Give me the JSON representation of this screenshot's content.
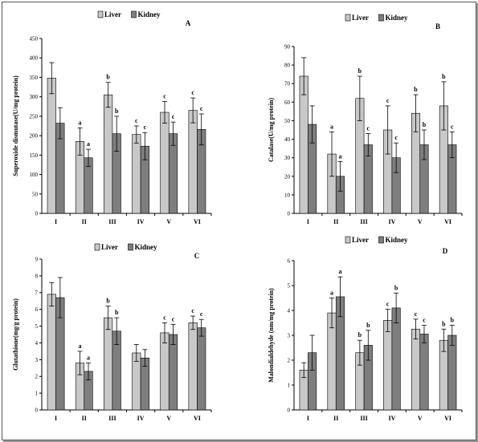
{
  "colors": {
    "liver": "#c8c8c8",
    "kidney": "#7e7e7e",
    "axis": "#000000"
  },
  "chart_data": [
    {
      "type": "bar",
      "panel": "A",
      "ylabel": "Superoxide dismutase(U/mg protein)",
      "ylim": [
        0,
        450
      ],
      "yticks": [
        0,
        50,
        100,
        150,
        200,
        250,
        300,
        350,
        400,
        450
      ],
      "categories": [
        "I",
        "II",
        "III",
        "IV",
        "V",
        "VI"
      ],
      "series": [
        {
          "name": "Liver",
          "values": [
            348,
            185,
            305,
            203,
            260,
            265
          ],
          "err": [
            40,
            35,
            32,
            22,
            28,
            32
          ],
          "sig": [
            "",
            "a",
            "b",
            "c",
            "c",
            "c"
          ]
        },
        {
          "name": "Kidney",
          "values": [
            232,
            143,
            205,
            173,
            205,
            216
          ],
          "err": [
            40,
            22,
            45,
            35,
            30,
            40
          ],
          "sig": [
            "",
            "a",
            "b",
            "c",
            "c",
            "c"
          ]
        }
      ]
    },
    {
      "type": "bar",
      "panel": "B",
      "ylabel": "Catalase(U/mg protein)",
      "ylim": [
        0,
        90
      ],
      "yticks": [
        0,
        10,
        20,
        30,
        40,
        50,
        60,
        70,
        80,
        90
      ],
      "categories": [
        "I",
        "II",
        "III",
        "IV",
        "V",
        "VI"
      ],
      "series": [
        {
          "name": "Liver",
          "values": [
            74,
            32,
            62,
            45,
            54,
            58
          ],
          "err": [
            10,
            12,
            12,
            13,
            10,
            13
          ],
          "sig": [
            "",
            "a",
            "b",
            "c",
            "b",
            "b"
          ]
        },
        {
          "name": "Kidney",
          "values": [
            48,
            20,
            37,
            30,
            37,
            37
          ],
          "err": [
            10,
            8,
            6,
            8,
            8,
            7
          ],
          "sig": [
            "",
            "a",
            "c",
            "c",
            "b",
            "c"
          ]
        }
      ]
    },
    {
      "type": "bar",
      "panel": "C",
      "ylabel": "Glutathione(mg/g protein)",
      "ylim": [
        0,
        9
      ],
      "yticks": [
        0,
        1,
        2,
        3,
        4,
        5,
        6,
        7,
        8,
        9
      ],
      "categories": [
        "I",
        "II",
        "III",
        "IV",
        "V",
        "VI"
      ],
      "series": [
        {
          "name": "Liver",
          "values": [
            6.9,
            2.8,
            5.5,
            3.4,
            4.6,
            5.2
          ],
          "err": [
            0.7,
            0.7,
            0.7,
            0.5,
            0.6,
            0.4
          ],
          "sig": [
            "",
            "a",
            "b",
            "",
            "c",
            "c"
          ]
        },
        {
          "name": "Kidney",
          "values": [
            6.7,
            2.3,
            4.7,
            3.1,
            4.5,
            4.9
          ],
          "err": [
            1.2,
            0.5,
            0.8,
            0.5,
            0.6,
            0.5
          ],
          "sig": [
            "",
            "a",
            "b",
            "",
            "c",
            "c"
          ]
        }
      ]
    },
    {
      "type": "bar",
      "panel": "D",
      "ylabel": "Malondialdehyde (nm/mg protein)",
      "ylim": [
        0,
        6
      ],
      "yticks": [
        0,
        1,
        2,
        3,
        4,
        5,
        6
      ],
      "categories": [
        "I",
        "II",
        "III",
        "IV",
        "V",
        "VI"
      ],
      "series": [
        {
          "name": "Liver",
          "values": [
            1.6,
            3.9,
            2.3,
            3.6,
            3.25,
            2.8
          ],
          "err": [
            0.3,
            0.6,
            0.5,
            0.45,
            0.4,
            0.45
          ],
          "sig": [
            "",
            "a",
            "b",
            "c",
            "c",
            "b"
          ]
        },
        {
          "name": "Kidney",
          "values": [
            2.3,
            4.55,
            2.6,
            4.1,
            3.05,
            3.0
          ],
          "err": [
            0.7,
            0.8,
            0.6,
            0.6,
            0.35,
            0.4
          ],
          "sig": [
            "",
            "a",
            "b",
            "b",
            "c",
            "b"
          ]
        }
      ]
    }
  ]
}
